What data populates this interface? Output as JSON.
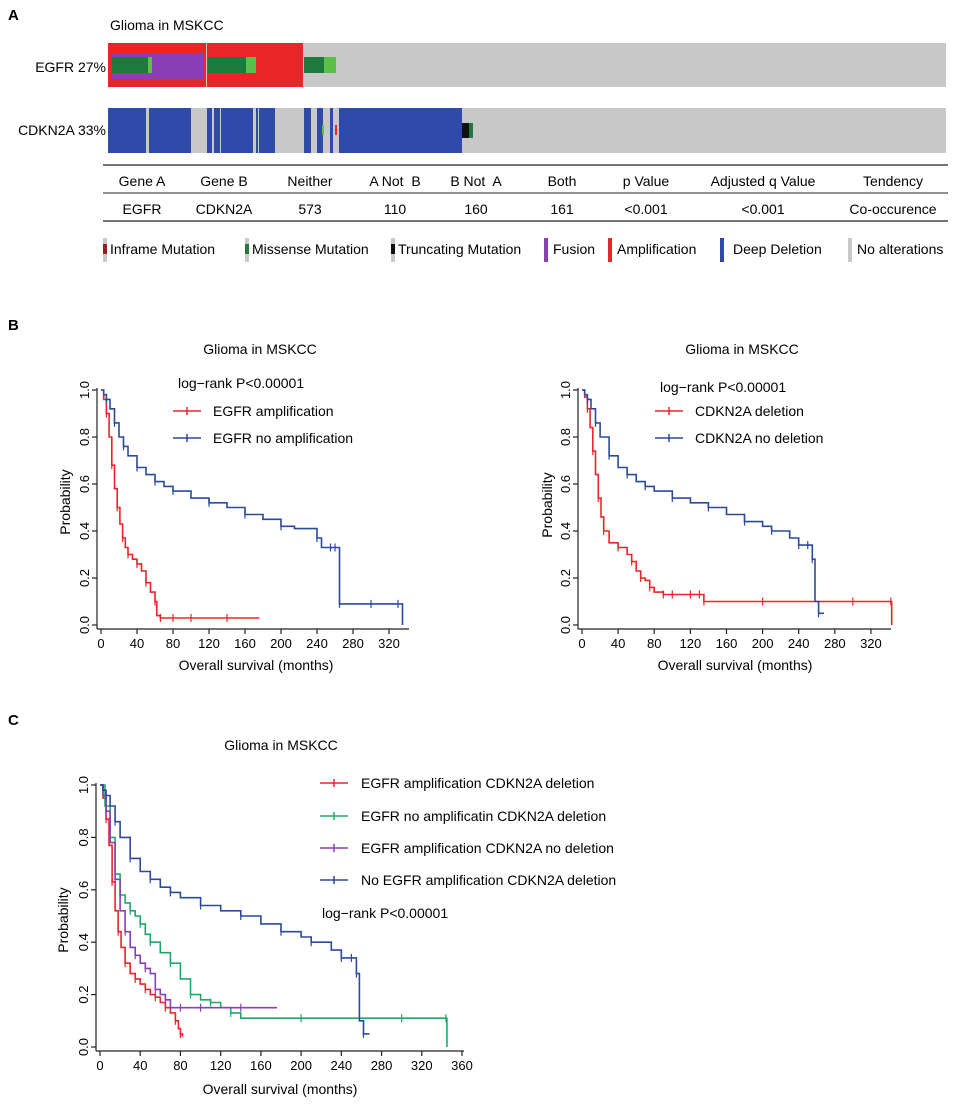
{
  "panels": {
    "a": "A",
    "b": "B",
    "c": "C"
  },
  "oncoprint": {
    "title": "Glioma in MSKCC",
    "genes": [
      {
        "label": "EGFR 27%"
      },
      {
        "label": "CDKN2A 33%"
      }
    ],
    "table": {
      "headers": [
        "Gene A",
        "Gene B",
        "Neither",
        "A Not  B",
        "B Not  A",
        "Both",
        "p Value",
        "Adjusted q Value",
        "Tendency"
      ],
      "row": [
        "EGFR",
        "CDKN2A",
        "573",
        "110",
        "160",
        "161",
        "<0.001",
        "<0.001",
        "Co-occurence"
      ]
    },
    "legend": [
      {
        "label": "Inframe Mutation",
        "color": "#9b1c1c"
      },
      {
        "label": "Missense Mutation",
        "color": "#1e7a3c"
      },
      {
        "label": "Truncating Mutation",
        "color": "#111111"
      },
      {
        "label": "Fusion",
        "color": "#8a3fb5"
      },
      {
        "label": "Amplification",
        "color": "#e8262a"
      },
      {
        "label": "Deep Deletion",
        "color": "#2f4aa8"
      },
      {
        "label": "No alterations",
        "color": "#c8c8c8"
      }
    ],
    "colors": {
      "gray": "#c8c8c8",
      "amp": "#e8262a",
      "del": "#2f4aa8",
      "mis": "#1e7a3c",
      "mis_light": "#5cbf4a",
      "fusion": "#8a3fb5",
      "trunc": "#111111"
    }
  },
  "chart_data": [
    {
      "type": "line",
      "title": "Glioma in MSKCC",
      "xlabel": "Overall survival (months)",
      "ylabel": "Probability",
      "xlim": [
        0,
        340
      ],
      "ylim": [
        0,
        1.0
      ],
      "xticks": [
        "0",
        "40",
        "80",
        "120",
        "160",
        "200",
        "240",
        "280",
        "320"
      ],
      "yticks": [
        "0.0",
        "0.2",
        "0.4",
        "0.6",
        "0.8",
        "1.0"
      ],
      "annotation": "log−rank P<0.00001",
      "series": [
        {
          "name": "EGFR amplification",
          "color": "#e8262a",
          "x": [
            0,
            3,
            6,
            9,
            12,
            15,
            18,
            21,
            24,
            27,
            30,
            35,
            40,
            45,
            50,
            55,
            60,
            62,
            66,
            80,
            100,
            140,
            176
          ],
          "y": [
            1.0,
            0.96,
            0.9,
            0.8,
            0.68,
            0.58,
            0.5,
            0.43,
            0.37,
            0.33,
            0.3,
            0.28,
            0.26,
            0.23,
            0.18,
            0.14,
            0.1,
            0.04,
            0.03,
            0.03,
            0.03,
            0.03,
            0.03
          ]
        },
        {
          "name": "EGFR no amplification",
          "color": "#2b4a9c",
          "x": [
            0,
            3,
            6,
            10,
            15,
            20,
            25,
            30,
            40,
            50,
            60,
            70,
            80,
            100,
            120,
            140,
            160,
            180,
            200,
            215,
            240,
            245,
            255,
            260,
            265,
            300,
            330,
            335
          ],
          "y": [
            1.0,
            0.98,
            0.96,
            0.92,
            0.86,
            0.8,
            0.76,
            0.72,
            0.67,
            0.64,
            0.61,
            0.59,
            0.57,
            0.54,
            0.52,
            0.5,
            0.47,
            0.45,
            0.42,
            0.41,
            0.37,
            0.33,
            0.33,
            0.33,
            0.09,
            0.09,
            0.09,
            0.0
          ]
        }
      ]
    },
    {
      "type": "line",
      "title": "Glioma in MSKCC",
      "xlabel": "Overall survival (months)",
      "ylabel": "Probability",
      "xlim": [
        0,
        340
      ],
      "ylim": [
        0,
        1.0
      ],
      "xticks": [
        "0",
        "40",
        "80",
        "120",
        "160",
        "200",
        "240",
        "280",
        "320"
      ],
      "yticks": [
        "0.0",
        "0.2",
        "0.4",
        "0.6",
        "0.8",
        "1.0"
      ],
      "annotation": "log−rank P<0.00001",
      "series": [
        {
          "name": "CDKN2A deletion",
          "color": "#e8262a",
          "x": [
            0,
            3,
            6,
            9,
            12,
            15,
            18,
            21,
            24,
            30,
            40,
            50,
            55,
            60,
            65,
            70,
            75,
            80,
            90,
            100,
            120,
            130,
            135,
            200,
            300,
            342,
            343
          ],
          "y": [
            1.0,
            0.97,
            0.92,
            0.84,
            0.74,
            0.64,
            0.54,
            0.46,
            0.4,
            0.35,
            0.33,
            0.3,
            0.27,
            0.23,
            0.2,
            0.19,
            0.16,
            0.14,
            0.13,
            0.13,
            0.13,
            0.13,
            0.1,
            0.1,
            0.1,
            0.1,
            0.0
          ]
        },
        {
          "name": "CDKN2A no deletion",
          "color": "#2b4a9c",
          "x": [
            0,
            3,
            6,
            10,
            15,
            20,
            30,
            40,
            50,
            60,
            70,
            80,
            100,
            120,
            140,
            160,
            180,
            200,
            210,
            230,
            240,
            250,
            255,
            258,
            262,
            268
          ],
          "y": [
            1.0,
            0.98,
            0.96,
            0.92,
            0.86,
            0.8,
            0.72,
            0.67,
            0.64,
            0.61,
            0.59,
            0.57,
            0.54,
            0.52,
            0.5,
            0.47,
            0.44,
            0.42,
            0.4,
            0.37,
            0.34,
            0.34,
            0.28,
            0.1,
            0.05,
            0.05
          ]
        }
      ]
    },
    {
      "type": "line",
      "title": "Glioma in MSKCC",
      "xlabel": "Overall survival (months)",
      "ylabel": "Probability",
      "xlim": [
        0,
        360
      ],
      "ylim": [
        0,
        1.0
      ],
      "xticks": [
        "0",
        "40",
        "80",
        "120",
        "160",
        "200",
        "240",
        "280",
        "320",
        "360"
      ],
      "yticks": [
        "0.0",
        "0.2",
        "0.4",
        "0.6",
        "0.8",
        "1.0"
      ],
      "annotation": "log−rank P<0.00001",
      "series": [
        {
          "name": "EGFR amplification CDKN2A deletion",
          "color": "#e8262a",
          "x": [
            0,
            3,
            6,
            9,
            12,
            15,
            18,
            21,
            25,
            30,
            35,
            40,
            45,
            50,
            55,
            60,
            65,
            70,
            75,
            78,
            80,
            82
          ],
          "y": [
            1.0,
            0.95,
            0.87,
            0.77,
            0.63,
            0.52,
            0.44,
            0.38,
            0.32,
            0.28,
            0.26,
            0.24,
            0.22,
            0.2,
            0.19,
            0.17,
            0.15,
            0.13,
            0.1,
            0.07,
            0.05,
            0.04
          ]
        },
        {
          "name": "EGFR no amplificatin CDKN2A deletion",
          "color": "#1fa86a",
          "x": [
            0,
            5,
            10,
            15,
            20,
            25,
            30,
            35,
            40,
            45,
            50,
            60,
            70,
            80,
            90,
            100,
            110,
            120,
            130,
            140,
            200,
            300,
            344,
            345
          ],
          "y": [
            1.0,
            0.92,
            0.8,
            0.66,
            0.58,
            0.55,
            0.52,
            0.5,
            0.47,
            0.43,
            0.4,
            0.36,
            0.32,
            0.26,
            0.2,
            0.18,
            0.17,
            0.15,
            0.13,
            0.11,
            0.11,
            0.11,
            0.11,
            0.0
          ]
        },
        {
          "name": "EGFR amplification CDKN2A no deletion",
          "color": "#8a3fb5",
          "x": [
            0,
            3,
            6,
            10,
            15,
            20,
            25,
            30,
            35,
            40,
            45,
            50,
            55,
            60,
            65,
            70,
            80,
            100,
            140,
            176
          ],
          "y": [
            1.0,
            0.96,
            0.9,
            0.78,
            0.64,
            0.52,
            0.44,
            0.38,
            0.35,
            0.32,
            0.3,
            0.28,
            0.22,
            0.2,
            0.18,
            0.15,
            0.15,
            0.15,
            0.15,
            0.15
          ]
        },
        {
          "name": "No EGFR amplification CDKN2A deletion",
          "color": "#2b4a9c",
          "x": [
            0,
            3,
            6,
            10,
            15,
            20,
            30,
            40,
            50,
            60,
            70,
            80,
            100,
            120,
            140,
            160,
            180,
            200,
            210,
            230,
            240,
            250,
            255,
            258,
            262,
            268
          ],
          "y": [
            1.0,
            0.98,
            0.96,
            0.92,
            0.86,
            0.8,
            0.72,
            0.67,
            0.64,
            0.61,
            0.59,
            0.57,
            0.54,
            0.52,
            0.5,
            0.47,
            0.44,
            0.42,
            0.4,
            0.37,
            0.34,
            0.34,
            0.28,
            0.1,
            0.05,
            0.05
          ]
        }
      ]
    }
  ]
}
